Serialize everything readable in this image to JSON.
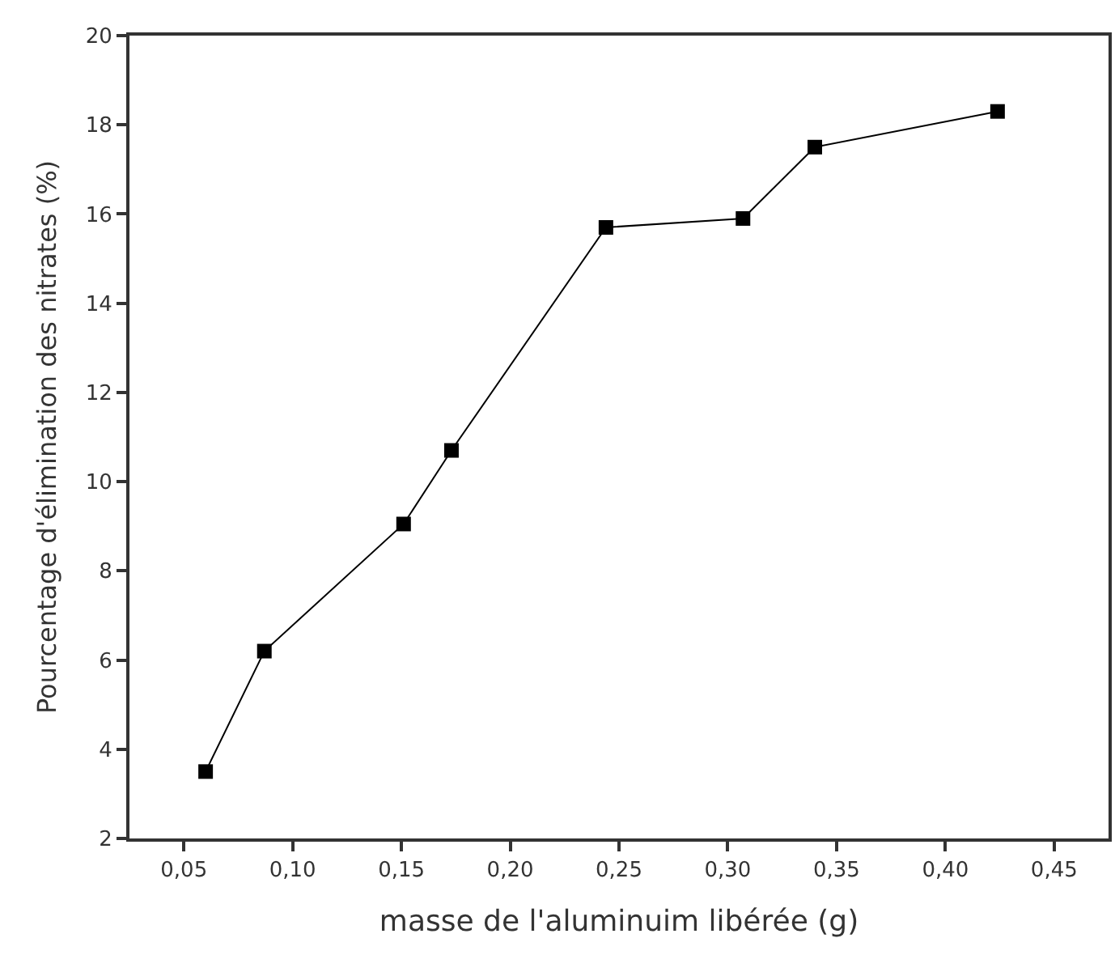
{
  "chart_data": {
    "type": "line",
    "xlabel": "masse de l'aluminuim libérée (g)",
    "ylabel": "Pourcentage d'élimination des nitrates (%)",
    "x": [
      0.06,
      0.087,
      0.151,
      0.173,
      0.244,
      0.307,
      0.34,
      0.424
    ],
    "series": [
      {
        "color": "#000000",
        "values": [
          3.5,
          6.2,
          9.05,
          10.7,
          15.7,
          15.9,
          17.5,
          18.3
        ]
      }
    ],
    "xlim": [
      0.025,
      0.475
    ],
    "xticks": [
      {
        "value": 0.05,
        "label": "0,05"
      },
      {
        "value": 0.1,
        "label": "0,10"
      },
      {
        "value": 0.15,
        "label": "0,15"
      },
      {
        "value": 0.2,
        "label": "0,20"
      },
      {
        "value": 0.25,
        "label": "0,25"
      },
      {
        "value": 0.3,
        "label": "0,30"
      },
      {
        "value": 0.35,
        "label": "0,35"
      },
      {
        "value": 0.4,
        "label": "0,40"
      },
      {
        "value": 0.45,
        "label": "0,45"
      }
    ],
    "ylim": [
      2,
      20
    ],
    "yticks": [
      2,
      4,
      6,
      8,
      10,
      12,
      14,
      16,
      18,
      20
    ],
    "marker": "square",
    "line_style": "solid"
  }
}
